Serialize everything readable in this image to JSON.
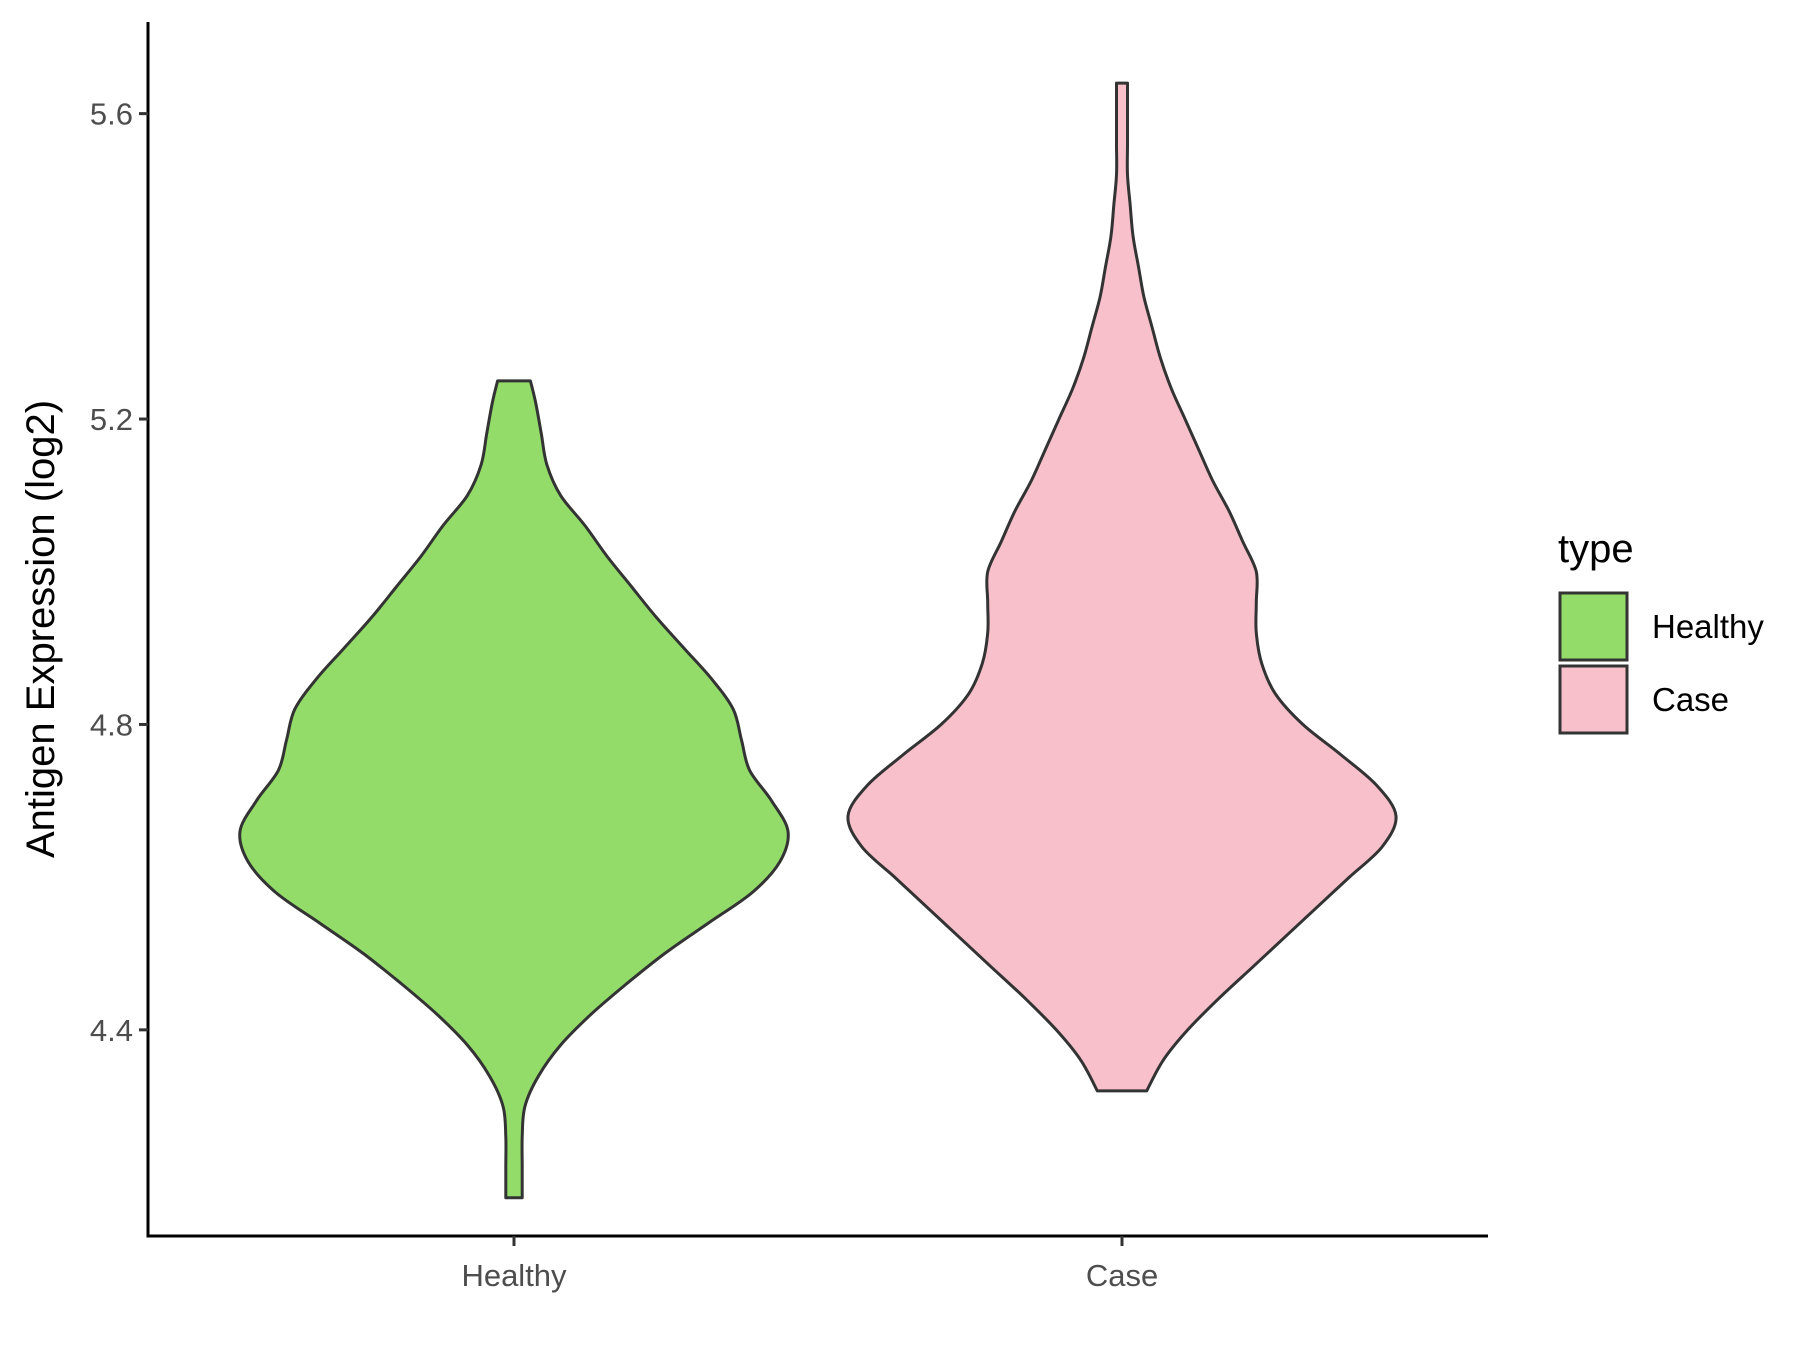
{
  "chart_data": {
    "type": "violin",
    "ylabel": "Antigen Expression (log2)",
    "xlabel": "",
    "categories": [
      "Healthy",
      "Case"
    ],
    "ylim": [
      4.13,
      5.72
    ],
    "yticks": [
      "4.4",
      "4.8",
      "5.2",
      "5.6"
    ],
    "grid": false,
    "legend": {
      "title": "type",
      "position": "right",
      "entries": [
        "Healthy",
        "Case"
      ]
    },
    "colors": {
      "Healthy": "#93DC6A",
      "Case": "#F7C0CB",
      "outline": "#333333"
    },
    "series": [
      {
        "name": "Healthy",
        "min": 4.18,
        "max": 5.25,
        "density": [
          [
            4.18,
            0.03
          ],
          [
            4.22,
            0.03
          ],
          [
            4.26,
            0.03
          ],
          [
            4.3,
            0.04
          ],
          [
            4.34,
            0.09
          ],
          [
            4.38,
            0.17
          ],
          [
            4.42,
            0.28
          ],
          [
            4.46,
            0.41
          ],
          [
            4.5,
            0.55
          ],
          [
            4.54,
            0.71
          ],
          [
            4.58,
            0.87
          ],
          [
            4.62,
            0.97
          ],
          [
            4.66,
            1.0
          ],
          [
            4.7,
            0.94
          ],
          [
            4.74,
            0.86
          ],
          [
            4.78,
            0.83
          ],
          [
            4.82,
            0.8
          ],
          [
            4.86,
            0.72
          ],
          [
            4.9,
            0.62
          ],
          [
            4.94,
            0.52
          ],
          [
            4.98,
            0.43
          ],
          [
            5.02,
            0.34
          ],
          [
            5.06,
            0.26
          ],
          [
            5.1,
            0.17
          ],
          [
            5.14,
            0.12
          ],
          [
            5.18,
            0.1
          ],
          [
            5.22,
            0.08
          ],
          [
            5.25,
            0.06
          ]
        ]
      },
      {
        "name": "Case",
        "min": 4.32,
        "max": 5.64,
        "density": [
          [
            4.32,
            0.09
          ],
          [
            4.36,
            0.15
          ],
          [
            4.4,
            0.24
          ],
          [
            4.44,
            0.35
          ],
          [
            4.48,
            0.47
          ],
          [
            4.52,
            0.59
          ],
          [
            4.56,
            0.71
          ],
          [
            4.6,
            0.83
          ],
          [
            4.64,
            0.95
          ],
          [
            4.68,
            1.0
          ],
          [
            4.72,
            0.93
          ],
          [
            4.76,
            0.8
          ],
          [
            4.8,
            0.66
          ],
          [
            4.84,
            0.56
          ],
          [
            4.88,
            0.51
          ],
          [
            4.92,
            0.49
          ],
          [
            4.96,
            0.49
          ],
          [
            5.0,
            0.49
          ],
          [
            5.04,
            0.44
          ],
          [
            5.08,
            0.39
          ],
          [
            5.12,
            0.33
          ],
          [
            5.16,
            0.28
          ],
          [
            5.2,
            0.23
          ],
          [
            5.24,
            0.18
          ],
          [
            5.28,
            0.14
          ],
          [
            5.32,
            0.11
          ],
          [
            5.36,
            0.08
          ],
          [
            5.4,
            0.06
          ],
          [
            5.44,
            0.04
          ],
          [
            5.48,
            0.03
          ],
          [
            5.52,
            0.02
          ],
          [
            5.56,
            0.02
          ],
          [
            5.6,
            0.02
          ],
          [
            5.64,
            0.02
          ]
        ]
      }
    ]
  }
}
